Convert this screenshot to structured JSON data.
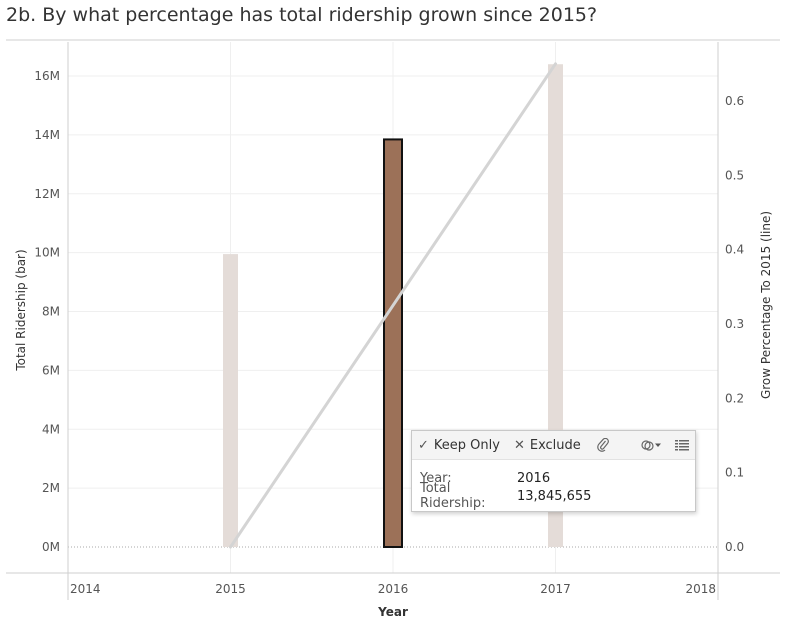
{
  "title": "2b. By what percentage has total ridership grown since 2015?",
  "chart_data": {
    "type": "bar+line",
    "x": [
      2014,
      2015,
      2016,
      2017,
      2018
    ],
    "x_label": "Year",
    "xlim": [
      2014,
      2018
    ],
    "y_left_label": "Total Ridership (bar)",
    "y_left_ticks": [
      "0M",
      "2M",
      "4M",
      "6M",
      "8M",
      "10M",
      "12M",
      "14M",
      "16M"
    ],
    "ylim_left": [
      0,
      16000000
    ],
    "y_right_label": "Grow Percentage To 2015 (line)",
    "y_right_ticks": [
      "0.0",
      "0.1",
      "0.2",
      "0.3",
      "0.4",
      "0.5",
      "0.6"
    ],
    "ylim_right": [
      0,
      0.6
    ],
    "bars": [
      {
        "year": 2015,
        "value": 9950000,
        "selected": false
      },
      {
        "year": 2016,
        "value": 13845655,
        "selected": true
      },
      {
        "year": 2017,
        "value": 16400000,
        "selected": false
      }
    ],
    "line": [
      {
        "year": 2015,
        "value": 0.0
      },
      {
        "year": 2017,
        "value": 0.65
      }
    ],
    "colors": {
      "bar": "#e4dcd8",
      "bar_selected": "#9c7158",
      "line": "#d4d4d4",
      "grid": "#efefef"
    }
  },
  "tooltip": {
    "keep_only": "Keep Only",
    "exclude": "Exclude",
    "rows": [
      {
        "key": "Year:",
        "value": "2016"
      },
      {
        "key": "Total Ridership:",
        "value": "13,845,655"
      }
    ]
  }
}
